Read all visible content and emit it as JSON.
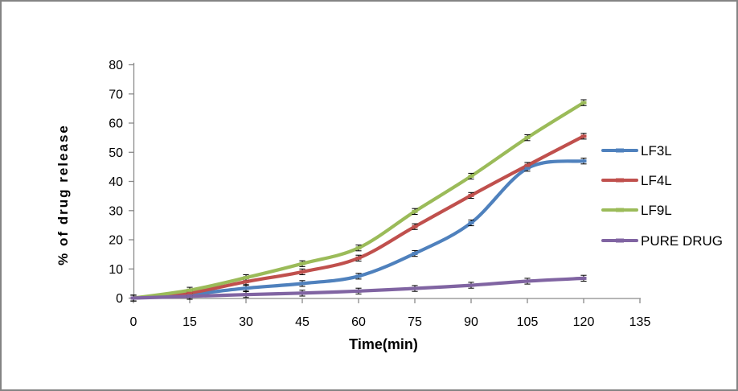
{
  "frame": {
    "border_color": "#848484",
    "background_color": "#ffffff"
  },
  "chart_data": {
    "type": "line",
    "title": "",
    "xlabel": "Time(min)",
    "ylabel": "% of drug release",
    "x": [
      0,
      15,
      30,
      45,
      60,
      75,
      90,
      105,
      120
    ],
    "x_ticks": [
      0,
      15,
      30,
      45,
      60,
      75,
      90,
      105,
      120,
      135
    ],
    "y_ticks": [
      0,
      10,
      20,
      30,
      40,
      50,
      60,
      70,
      80
    ],
    "xlim": [
      0,
      135
    ],
    "ylim": [
      0,
      80
    ],
    "grid": false,
    "smooth_lines": true,
    "error_bars": true,
    "y_error": 1.0,
    "legend_position": "right",
    "axis_color": "#8a8a8a",
    "error_bar_color": "#000000",
    "series": [
      {
        "name": "LF3L",
        "color": "#4F81BD",
        "values": [
          0,
          1.3,
          3.4,
          5.0,
          7.5,
          15.3,
          25.8,
          44.5,
          47.0
        ]
      },
      {
        "name": "LF4L",
        "color": "#C0504D",
        "values": [
          0,
          1.8,
          5.6,
          9.0,
          13.7,
          24.5,
          35.2,
          45.5,
          55.5
        ]
      },
      {
        "name": "LF9L",
        "color": "#9BBB59",
        "values": [
          0,
          2.7,
          7.0,
          11.8,
          17.2,
          29.7,
          41.8,
          55.0,
          67.0
        ]
      },
      {
        "name": "PURE DRUG",
        "color": "#8064A2",
        "values": [
          0,
          0.6,
          1.2,
          1.7,
          2.4,
          3.3,
          4.4,
          5.8,
          6.8
        ]
      }
    ]
  }
}
